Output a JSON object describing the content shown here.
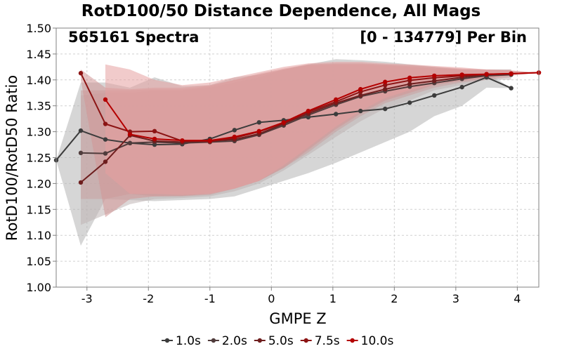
{
  "chart_data": {
    "type": "line",
    "title": "RotD100/50 Distance Dependence, All Mags",
    "annotations": {
      "left": "565161 Spectra",
      "right": "[0 - 134779] Per Bin"
    },
    "xlabel": "GMPE Z",
    "ylabel": "RotD100/RotD50 Ratio",
    "xlim": [
      -3.5,
      4.35
    ],
    "ylim": [
      1.0,
      1.5
    ],
    "xticks": [
      "-3",
      "-2",
      "-1",
      "0",
      "1",
      "2",
      "3",
      "4"
    ],
    "yticks": [
      "1.00",
      "1.05",
      "1.10",
      "1.15",
      "1.20",
      "1.25",
      "1.30",
      "1.35",
      "1.40",
      "1.45",
      "1.50"
    ],
    "grid": true,
    "legend_position": "bottom",
    "series": [
      {
        "name": "1.0s",
        "color": "#3c3c3c",
        "band_color": "#b4b4b4",
        "x": [
          -3.5,
          -3.1,
          -2.7,
          -2.3,
          -1.9,
          -1.45,
          -1.0,
          -0.6,
          -0.2,
          0.2,
          0.6,
          1.05,
          1.45,
          1.85,
          2.25,
          2.65,
          3.1,
          3.5,
          3.9
        ],
        "y": [
          1.245,
          1.302,
          1.285,
          1.278,
          1.275,
          1.276,
          1.286,
          1.303,
          1.318,
          1.322,
          1.328,
          1.334,
          1.34,
          1.344,
          1.356,
          1.37,
          1.386,
          1.405,
          1.384
        ],
        "lower": [
          1.245,
          1.08,
          1.17,
          1.168,
          1.166,
          1.168,
          1.17,
          1.175,
          1.19,
          1.205,
          1.22,
          1.24,
          1.26,
          1.28,
          1.3,
          1.33,
          1.35,
          1.385,
          1.384
        ],
        "upper": [
          1.245,
          1.395,
          1.395,
          1.385,
          1.405,
          1.388,
          1.39,
          1.405,
          1.41,
          1.42,
          1.43,
          1.44,
          1.438,
          1.435,
          1.43,
          1.425,
          1.42,
          1.415,
          1.384
        ]
      },
      {
        "name": "2.0s",
        "color": "#503c3c",
        "band_color": "#c0b4b4",
        "x": [
          -3.1,
          -2.7,
          -2.3,
          -1.9,
          -1.45,
          -1.0,
          -0.6,
          -0.2,
          0.2,
          0.6,
          1.05,
          1.45,
          1.85,
          2.25,
          2.65,
          3.1,
          3.5,
          3.9
        ],
        "y": [
          1.259,
          1.258,
          1.278,
          1.28,
          1.278,
          1.28,
          1.282,
          1.294,
          1.312,
          1.332,
          1.352,
          1.368,
          1.378,
          1.387,
          1.394,
          1.402,
          1.408,
          1.41
        ],
        "lower": [
          1.12,
          1.14,
          1.16,
          1.17,
          1.172,
          1.175,
          1.185,
          1.2,
          1.225,
          1.255,
          1.29,
          1.32,
          1.345,
          1.36,
          1.38,
          1.39,
          1.4,
          1.4
        ],
        "upper": [
          1.37,
          1.375,
          1.375,
          1.38,
          1.38,
          1.385,
          1.395,
          1.405,
          1.42,
          1.43,
          1.432,
          1.432,
          1.43,
          1.428,
          1.425,
          1.42,
          1.42,
          1.42
        ]
      },
      {
        "name": "5.0s",
        "color": "#6e1e1e",
        "band_color": "#c8a0a0",
        "x": [
          -3.1,
          -2.7,
          -2.3,
          -1.9,
          -1.45,
          -1.0,
          -0.6,
          -0.2,
          0.2,
          0.6,
          1.05,
          1.45,
          1.85,
          2.25,
          2.65,
          3.1,
          3.5,
          3.9
        ],
        "y": [
          1.202,
          1.242,
          1.293,
          1.282,
          1.28,
          1.282,
          1.285,
          1.296,
          1.315,
          1.335,
          1.355,
          1.37,
          1.382,
          1.392,
          1.398,
          1.405,
          1.41,
          1.412
        ],
        "lower": [
          1.17,
          1.17,
          1.18,
          1.175,
          1.175,
          1.178,
          1.19,
          1.205,
          1.23,
          1.26,
          1.3,
          1.33,
          1.355,
          1.37,
          1.385,
          1.395,
          1.4,
          1.405
        ],
        "upper": [
          1.38,
          1.38,
          1.38,
          1.382,
          1.382,
          1.388,
          1.4,
          1.41,
          1.42,
          1.428,
          1.43,
          1.43,
          1.428,
          1.425,
          1.422,
          1.42,
          1.42,
          1.42
        ]
      },
      {
        "name": "7.5s",
        "color": "#8c1414",
        "band_color": "#d29696",
        "x": [
          -3.1,
          -2.7,
          -2.3,
          -1.9,
          -1.45,
          -1.0,
          -0.6,
          -0.2,
          0.2,
          0.6,
          1.05,
          1.45,
          1.85,
          2.25,
          2.65,
          3.1,
          3.5,
          3.9,
          4.35
        ],
        "y": [
          1.413,
          1.315,
          1.3,
          1.301,
          1.282,
          1.281,
          1.288,
          1.3,
          1.317,
          1.338,
          1.358,
          1.377,
          1.39,
          1.399,
          1.404,
          1.408,
          1.411,
          1.412,
          1.414
        ],
        "lower": [
          1.4,
          1.135,
          1.17,
          1.175,
          1.176,
          1.18,
          1.19,
          1.205,
          1.23,
          1.265,
          1.305,
          1.335,
          1.36,
          1.375,
          1.39,
          1.398,
          1.403,
          1.408,
          1.414
        ],
        "upper": [
          1.42,
          1.385,
          1.382,
          1.385,
          1.385,
          1.39,
          1.4,
          1.412,
          1.422,
          1.43,
          1.432,
          1.432,
          1.43,
          1.428,
          1.425,
          1.422,
          1.42,
          1.418,
          1.414
        ]
      },
      {
        "name": "10.0s",
        "color": "#b40000",
        "band_color": "#e6a0a0",
        "x": [
          -2.7,
          -2.3,
          -1.9,
          -1.45,
          -1.0,
          -0.6,
          -0.2,
          0.2,
          0.6,
          1.05,
          1.45,
          1.85,
          2.25,
          2.65,
          3.1,
          3.5,
          3.9,
          4.35
        ],
        "y": [
          1.362,
          1.295,
          1.286,
          1.283,
          1.283,
          1.29,
          1.301,
          1.318,
          1.34,
          1.362,
          1.382,
          1.396,
          1.404,
          1.408,
          1.41,
          1.411,
          1.412,
          1.414
        ],
        "lower": [
          1.22,
          1.18,
          1.18,
          1.178,
          1.18,
          1.19,
          1.205,
          1.235,
          1.27,
          1.31,
          1.34,
          1.365,
          1.38,
          1.392,
          1.4,
          1.405,
          1.41,
          1.414
        ],
        "upper": [
          1.43,
          1.42,
          1.4,
          1.39,
          1.395,
          1.405,
          1.415,
          1.425,
          1.432,
          1.435,
          1.435,
          1.432,
          1.43,
          1.427,
          1.424,
          1.42,
          1.418,
          1.414
        ]
      }
    ]
  }
}
